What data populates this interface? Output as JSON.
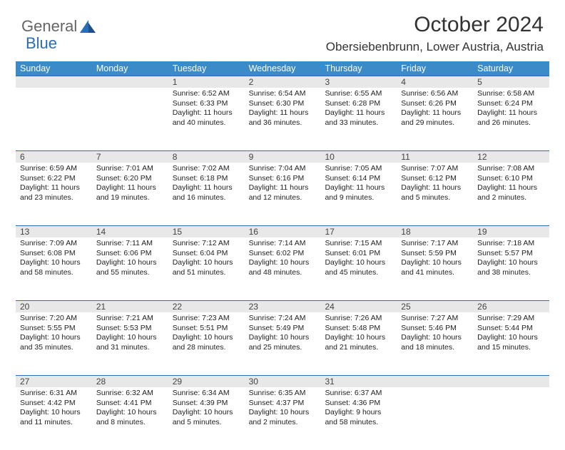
{
  "logo": {
    "part1": "General",
    "part2": "Blue"
  },
  "header": {
    "month_title": "October 2024",
    "location": "Obersiebenbrunn, Lower Austria, Austria"
  },
  "colors": {
    "header_bg": "#3b8bc9",
    "header_border": "#2a6db5",
    "daynum_bg": "#e8e8e8",
    "logo_blue": "#2a6db5"
  },
  "day_names": [
    "Sunday",
    "Monday",
    "Tuesday",
    "Wednesday",
    "Thursday",
    "Friday",
    "Saturday"
  ],
  "weeks": [
    {
      "nums": [
        "",
        "",
        "1",
        "2",
        "3",
        "4",
        "5"
      ],
      "cells": [
        {},
        {},
        {
          "sunrise": "Sunrise: 6:52 AM",
          "sunset": "Sunset: 6:33 PM",
          "daylight": "Daylight: 11 hours and 40 minutes."
        },
        {
          "sunrise": "Sunrise: 6:54 AM",
          "sunset": "Sunset: 6:30 PM",
          "daylight": "Daylight: 11 hours and 36 minutes."
        },
        {
          "sunrise": "Sunrise: 6:55 AM",
          "sunset": "Sunset: 6:28 PM",
          "daylight": "Daylight: 11 hours and 33 minutes."
        },
        {
          "sunrise": "Sunrise: 6:56 AM",
          "sunset": "Sunset: 6:26 PM",
          "daylight": "Daylight: 11 hours and 29 minutes."
        },
        {
          "sunrise": "Sunrise: 6:58 AM",
          "sunset": "Sunset: 6:24 PM",
          "daylight": "Daylight: 11 hours and 26 minutes."
        }
      ]
    },
    {
      "nums": [
        "6",
        "7",
        "8",
        "9",
        "10",
        "11",
        "12"
      ],
      "cells": [
        {
          "sunrise": "Sunrise: 6:59 AM",
          "sunset": "Sunset: 6:22 PM",
          "daylight": "Daylight: 11 hours and 23 minutes."
        },
        {
          "sunrise": "Sunrise: 7:01 AM",
          "sunset": "Sunset: 6:20 PM",
          "daylight": "Daylight: 11 hours and 19 minutes."
        },
        {
          "sunrise": "Sunrise: 7:02 AM",
          "sunset": "Sunset: 6:18 PM",
          "daylight": "Daylight: 11 hours and 16 minutes."
        },
        {
          "sunrise": "Sunrise: 7:04 AM",
          "sunset": "Sunset: 6:16 PM",
          "daylight": "Daylight: 11 hours and 12 minutes."
        },
        {
          "sunrise": "Sunrise: 7:05 AM",
          "sunset": "Sunset: 6:14 PM",
          "daylight": "Daylight: 11 hours and 9 minutes."
        },
        {
          "sunrise": "Sunrise: 7:07 AM",
          "sunset": "Sunset: 6:12 PM",
          "daylight": "Daylight: 11 hours and 5 minutes."
        },
        {
          "sunrise": "Sunrise: 7:08 AM",
          "sunset": "Sunset: 6:10 PM",
          "daylight": "Daylight: 11 hours and 2 minutes."
        }
      ]
    },
    {
      "nums": [
        "13",
        "14",
        "15",
        "16",
        "17",
        "18",
        "19"
      ],
      "cells": [
        {
          "sunrise": "Sunrise: 7:09 AM",
          "sunset": "Sunset: 6:08 PM",
          "daylight": "Daylight: 10 hours and 58 minutes."
        },
        {
          "sunrise": "Sunrise: 7:11 AM",
          "sunset": "Sunset: 6:06 PM",
          "daylight": "Daylight: 10 hours and 55 minutes."
        },
        {
          "sunrise": "Sunrise: 7:12 AM",
          "sunset": "Sunset: 6:04 PM",
          "daylight": "Daylight: 10 hours and 51 minutes."
        },
        {
          "sunrise": "Sunrise: 7:14 AM",
          "sunset": "Sunset: 6:02 PM",
          "daylight": "Daylight: 10 hours and 48 minutes."
        },
        {
          "sunrise": "Sunrise: 7:15 AM",
          "sunset": "Sunset: 6:01 PM",
          "daylight": "Daylight: 10 hours and 45 minutes."
        },
        {
          "sunrise": "Sunrise: 7:17 AM",
          "sunset": "Sunset: 5:59 PM",
          "daylight": "Daylight: 10 hours and 41 minutes."
        },
        {
          "sunrise": "Sunrise: 7:18 AM",
          "sunset": "Sunset: 5:57 PM",
          "daylight": "Daylight: 10 hours and 38 minutes."
        }
      ]
    },
    {
      "nums": [
        "20",
        "21",
        "22",
        "23",
        "24",
        "25",
        "26"
      ],
      "cells": [
        {
          "sunrise": "Sunrise: 7:20 AM",
          "sunset": "Sunset: 5:55 PM",
          "daylight": "Daylight: 10 hours and 35 minutes."
        },
        {
          "sunrise": "Sunrise: 7:21 AM",
          "sunset": "Sunset: 5:53 PM",
          "daylight": "Daylight: 10 hours and 31 minutes."
        },
        {
          "sunrise": "Sunrise: 7:23 AM",
          "sunset": "Sunset: 5:51 PM",
          "daylight": "Daylight: 10 hours and 28 minutes."
        },
        {
          "sunrise": "Sunrise: 7:24 AM",
          "sunset": "Sunset: 5:49 PM",
          "daylight": "Daylight: 10 hours and 25 minutes."
        },
        {
          "sunrise": "Sunrise: 7:26 AM",
          "sunset": "Sunset: 5:48 PM",
          "daylight": "Daylight: 10 hours and 21 minutes."
        },
        {
          "sunrise": "Sunrise: 7:27 AM",
          "sunset": "Sunset: 5:46 PM",
          "daylight": "Daylight: 10 hours and 18 minutes."
        },
        {
          "sunrise": "Sunrise: 7:29 AM",
          "sunset": "Sunset: 5:44 PM",
          "daylight": "Daylight: 10 hours and 15 minutes."
        }
      ]
    },
    {
      "nums": [
        "27",
        "28",
        "29",
        "30",
        "31",
        "",
        ""
      ],
      "cells": [
        {
          "sunrise": "Sunrise: 6:31 AM",
          "sunset": "Sunset: 4:42 PM",
          "daylight": "Daylight: 10 hours and 11 minutes."
        },
        {
          "sunrise": "Sunrise: 6:32 AM",
          "sunset": "Sunset: 4:41 PM",
          "daylight": "Daylight: 10 hours and 8 minutes."
        },
        {
          "sunrise": "Sunrise: 6:34 AM",
          "sunset": "Sunset: 4:39 PM",
          "daylight": "Daylight: 10 hours and 5 minutes."
        },
        {
          "sunrise": "Sunrise: 6:35 AM",
          "sunset": "Sunset: 4:37 PM",
          "daylight": "Daylight: 10 hours and 2 minutes."
        },
        {
          "sunrise": "Sunrise: 6:37 AM",
          "sunset": "Sunset: 4:36 PM",
          "daylight": "Daylight: 9 hours and 58 minutes."
        },
        {},
        {}
      ]
    }
  ]
}
